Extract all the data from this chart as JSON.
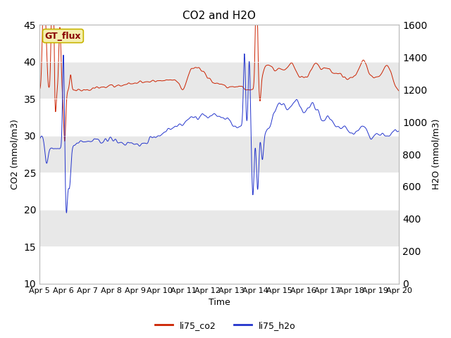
{
  "title": "CO2 and H2O",
  "ylabel_left": "CO2 (mmol/m3)",
  "ylabel_right": "H2O (mmol/m3)",
  "xlabel": "Time",
  "ylim_left": [
    10,
    45
  ],
  "ylim_right": [
    0,
    1600
  ],
  "yticks_left": [
    10,
    15,
    20,
    25,
    30,
    35,
    40,
    45
  ],
  "yticks_right": [
    0,
    200,
    400,
    600,
    800,
    1000,
    1200,
    1400,
    1600
  ],
  "xtick_labels": [
    "Apr 5",
    "Apr 6",
    "Apr 7",
    "Apr 8",
    "Apr 9",
    "Apr 10",
    "Apr 11",
    "Apr 12",
    "Apr 13",
    "Apr 14",
    "Apr 15",
    "Apr 16",
    "Apr 17",
    "Apr 18",
    "Apr 19",
    "Apr 20"
  ],
  "label_box_text": "GT_flux",
  "label_box_bg": "#f5f0b0",
  "label_box_edge": "#c8b400",
  "legend_labels": [
    "li75_co2",
    "li75_h2o"
  ],
  "legend_colors": [
    "#cc2200",
    "#2233cc"
  ],
  "band_color": "#e8e8e8",
  "line_co2_color": "#cc2200",
  "line_h2o_color": "#2233cc",
  "title_fontsize": 11,
  "axis_label_fontsize": 9,
  "tick_fontsize": 8
}
